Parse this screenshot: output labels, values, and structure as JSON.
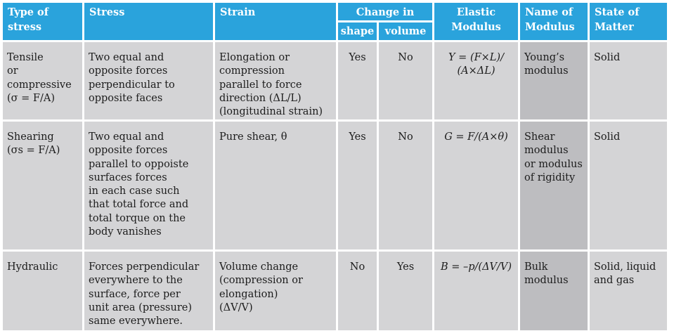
{
  "header": {
    "type_of_stress": "Type of\nstress",
    "stress": "Stress",
    "strain": "Strain",
    "change_in": "Change in",
    "shape": "shape",
    "volume": "volume",
    "elastic_modulus": "Elastic\nModulus",
    "name_of_modulus": "Name of\nModulus",
    "state_of_matter": "State of\nMatter"
  },
  "rows": [
    {
      "type": "Tensile\n or\ncompressive\n(σ = F/A)",
      "stress": "Two equal and\nopposite forces\nperpendicular to\nopposite faces",
      "strain": "Elongation or\ncompression\nparallel to force\ndirection (ΔL/L)\n(longitudinal strain)",
      "shape": "Yes",
      "volume": "No",
      "modulus": "Y = (F×L)/\n(A×ΔL)",
      "name": "Young’s\nmodulus",
      "state": "Solid"
    },
    {
      "type": "Shearing\n(σs = F/A)",
      "stress": "Two equal and\nopposite forces\nparallel to oppoiste\nsurfaces forces\nin each case such\nthat total force and\ntotal torque on the\nbody vanishes",
      "strain": "Pure shear, θ",
      "shape": "Yes",
      "volume": "No",
      "modulus": "G = F/(A×θ)",
      "name": "Shear\nmodulus\nor modulus\nof rigidity",
      "state": "Solid"
    },
    {
      "type": "Hydraulic",
      "stress": "Forces perpendicular\neverywhere to the\nsurface, force per\nunit area (pressure)\nsame everywhere.",
      "strain": "Volume change\n(compression or\nelongation)\n(ΔV/V)",
      "shape": "No",
      "volume": "Yes",
      "modulus": "B = –p/(ΔV/V)",
      "name": "Bulk\nmodulus",
      "state": "Solid, liquid\nand gas"
    }
  ]
}
